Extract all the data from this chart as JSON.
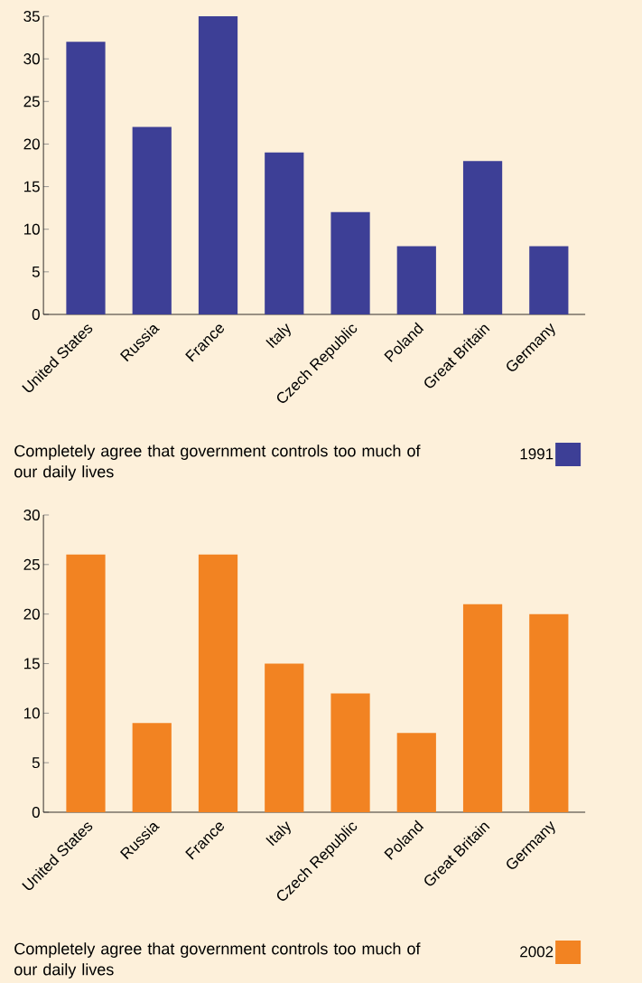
{
  "chart_data": [
    {
      "type": "bar",
      "categories": [
        "United States",
        "Russia",
        "France",
        "Italy",
        "Czech Republic",
        "Poland",
        "Great Britain",
        "Germany"
      ],
      "series": [
        {
          "name": "1991",
          "color": "#3d3f96",
          "values": [
            32,
            22,
            35,
            19,
            12,
            8,
            18,
            8
          ]
        }
      ],
      "ylim": [
        0,
        35
      ],
      "yticks": [
        0,
        5,
        10,
        15,
        20,
        25,
        30,
        35
      ],
      "legend": "bottom right",
      "annotations": [
        "Completely agree that government controls too much of our daily lives"
      ]
    },
    {
      "type": "bar",
      "categories": [
        "United States",
        "Russia",
        "France",
        "Italy",
        "Czech Republic",
        "Poland",
        "Great Britain",
        "Germany"
      ],
      "series": [
        {
          "name": "2002",
          "color": "#f28322",
          "values": [
            26,
            9,
            26,
            15,
            12,
            8,
            21,
            20
          ]
        }
      ],
      "ylim": [
        0,
        30
      ],
      "yticks": [
        0,
        5,
        10,
        15,
        20,
        25,
        30
      ],
      "legend": "bottom right",
      "annotations": [
        "Completely agree that government controls too much of our daily lives"
      ]
    }
  ]
}
